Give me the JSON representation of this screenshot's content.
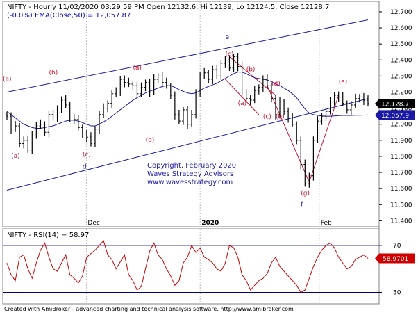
{
  "header": {
    "title": "NIFTY - Hourly 11/02/2020 03:29:59 PM Open 12132.6, Hi 12139, Lo 12124.5, Close 12128.7",
    "ema": "(-0.0%) EMA(Close,50) = 12,057.87"
  },
  "rsi_header": {
    "label": "NIFTY - RSI(14) = ",
    "value": "58.97"
  },
  "copyright": {
    "line1": "Copyright, February 2020",
    "line2": "Waves Strategy Advisors",
    "line3": "www.wavesstrategy.com"
  },
  "footer": "Created with AmiBroker - advanced charting and technical analysis software. http://www.amibroker.com",
  "colors": {
    "price": "#000000",
    "ema": "#1a1aa6",
    "channel": "#1a1aa6",
    "wave_lines": "#c8102e",
    "rsi": "#cc0000",
    "rsi_bands": "#000080",
    "tag_black": "#000000",
    "tag_blue": "#1a1aa6",
    "tag_red": "#cc0000"
  },
  "chart_data": [
    {
      "type": "line",
      "title": "NIFTY - Hourly",
      "y_axis_side": "right",
      "y_ticks": [
        11400,
        11500,
        11600,
        11700,
        11800,
        11900,
        12000,
        12100,
        12200,
        12300,
        12400,
        12500,
        12600,
        12700
      ],
      "ylim": [
        11380,
        12730
      ],
      "x_labels": [
        "Dec",
        "2020",
        "Feb"
      ],
      "series": [
        {
          "name": "NIFTY",
          "values": [
            12050,
            11970,
            11990,
            11880,
            11900,
            11840,
            11940,
            11990,
            12000,
            11950,
            12060,
            12040,
            12100,
            12150,
            12120,
            12040,
            12030,
            11980,
            11940,
            11920,
            11880,
            11970,
            12060,
            12100,
            12130,
            12190,
            12200,
            12280,
            12260,
            12250,
            12240,
            12190,
            12230,
            12260,
            12200,
            12280,
            12300,
            12260,
            12240,
            12180,
            12060,
            12020,
            12090,
            12000,
            12060,
            12200,
            12300,
            12320,
            12280,
            12340,
            12300,
            12380,
            12400,
            12350,
            12420,
            12360,
            12200,
            12160,
            12150,
            12210,
            12230,
            12280,
            12240,
            12160,
            12060,
            12140,
            12080,
            12040,
            12000,
            11900,
            11750,
            11630,
            11680,
            11900,
            12020,
            12050,
            12080,
            12140,
            12180,
            12170,
            12130,
            12090,
            12120,
            12160,
            12170,
            12150,
            12128.7
          ]
        },
        {
          "name": "EMA(Close,50)",
          "values": [
            12080,
            12060,
            12040,
            12020,
            12000,
            11990,
            11980,
            11975,
            11975,
            11980,
            11985,
            11990,
            12000,
            12010,
            12020,
            12025,
            12025,
            12020,
            12010,
            12000,
            11990,
            11990,
            12000,
            12015,
            12030,
            12050,
            12070,
            12090,
            12110,
            12130,
            12150,
            12165,
            12180,
            12195,
            12205,
            12215,
            12225,
            12235,
            12240,
            12240,
            12230,
            12215,
            12205,
            12195,
            12190,
            12195,
            12210,
            12225,
            12235,
            12245,
            12255,
            12270,
            12285,
            12300,
            12315,
            12325,
            12325,
            12315,
            12300,
            12290,
            12285,
            12280,
            12275,
            12265,
            12250,
            12240,
            12225,
            12210,
            12190,
            12165,
            12130,
            12095,
            12070,
            12060,
            12055,
            12052,
            12050,
            12050,
            12052,
            12054,
            12055,
            12055,
            12055,
            12056,
            12056,
            12057,
            12057.87
          ]
        }
      ],
      "price_tags": [
        {
          "label": "12,128.7",
          "value": 12128.7,
          "color": "black"
        },
        {
          "label": "12,057.9",
          "value": 12057.9,
          "color": "blue"
        }
      ],
      "wave_labels": [
        {
          "text": "(a)",
          "bar": 0,
          "value": 12270
        },
        {
          "text": "(a)",
          "bar": 2,
          "value": 11790
        },
        {
          "text": "(b)",
          "bar": 11,
          "value": 12310
        },
        {
          "text": "(c)",
          "bar": 19,
          "value": 11800
        },
        {
          "text": "d",
          "bar": 19,
          "value": 11725
        },
        {
          "text": "(a)",
          "bar": 31,
          "value": 12340
        },
        {
          "text": "(b)",
          "bar": 34,
          "value": 11890
        },
        {
          "text": "e",
          "bar": 53,
          "value": 12530
        },
        {
          "text": "(c)",
          "bar": 53,
          "value": 12425
        },
        {
          "text": "(b)",
          "bar": 58,
          "value": 12330
        },
        {
          "text": "(a)",
          "bar": 56,
          "value": 12120
        },
        {
          "text": "(d)",
          "bar": 64,
          "value": 12240
        },
        {
          "text": "(c)",
          "bar": 62,
          "value": 12035
        },
        {
          "text": "(e)",
          "bar": 65,
          "value": 12035
        },
        {
          "text": "(g)",
          "bar": 71,
          "value": 11560
        },
        {
          "text": "f",
          "bar": 71,
          "value": 11490
        },
        {
          "text": "(a)",
          "bar": 80,
          "value": 12255
        }
      ]
    },
    {
      "type": "line",
      "title": "NIFTY - RSI(14)",
      "y_ticks": [
        30,
        70
      ],
      "ylim": [
        22,
        80
      ],
      "bands": [
        30,
        70
      ],
      "series": [
        {
          "name": "RSI(14)",
          "values": [
            55,
            45,
            40,
            60,
            62,
            50,
            42,
            55,
            66,
            72,
            60,
            50,
            48,
            55,
            62,
            45,
            42,
            38,
            44,
            60,
            63,
            66,
            70,
            74,
            62,
            58,
            50,
            56,
            62,
            45,
            40,
            32,
            35,
            50,
            65,
            72,
            62,
            58,
            50,
            44,
            36,
            40,
            55,
            60,
            70,
            64,
            68,
            60,
            58,
            55,
            50,
            48,
            55,
            70,
            68,
            60,
            45,
            40,
            32,
            36,
            40,
            42,
            46,
            55,
            60,
            52,
            48,
            44,
            40,
            36,
            30,
            32,
            42,
            52,
            60,
            66,
            70,
            72,
            68,
            60,
            55,
            50,
            52,
            58,
            60,
            62,
            58.97
          ]
        }
      ],
      "value_tag": {
        "label": "58.9701",
        "value": 58.97
      }
    }
  ]
}
